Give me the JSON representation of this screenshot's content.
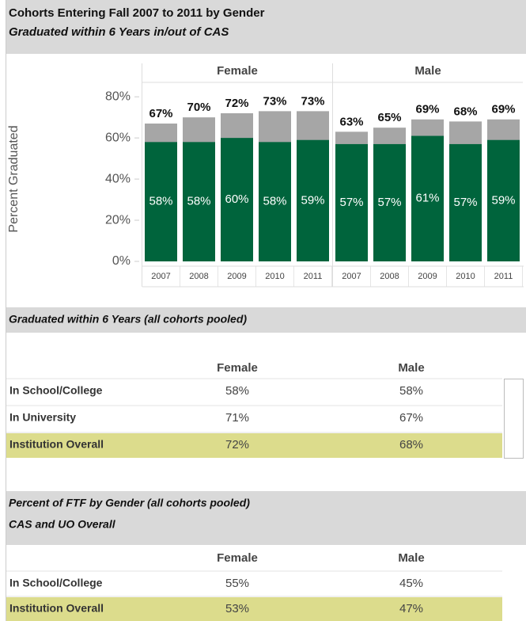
{
  "chart_data": {
    "type": "bar",
    "title": "Cohorts Entering Fall 2007 to 2011 by Gender",
    "subtitle": "Graduated within 6 Years in/out of CAS",
    "ylabel": "Percent Graduated",
    "ylim": [
      0,
      87
    ],
    "yticks": [
      {
        "value": 0,
        "label": "0%"
      },
      {
        "value": 20,
        "label": "20%"
      },
      {
        "value": 40,
        "label": "40%"
      },
      {
        "value": 60,
        "label": "60%"
      },
      {
        "value": 80,
        "label": "80%"
      }
    ],
    "panels": [
      {
        "name": "Female",
        "categories": [
          "2007",
          "2008",
          "2009",
          "2010",
          "2011"
        ],
        "series": [
          {
            "color": "#a6a6a6",
            "values": [
              67,
              70,
              72,
              73,
              73
            ],
            "value_labels": [
              "67%",
              "70%",
              "72%",
              "73%",
              "73%"
            ]
          },
          {
            "color": "#00643c",
            "values": [
              58,
              58,
              60,
              58,
              59
            ],
            "value_labels": [
              "58%",
              "58%",
              "60%",
              "58%",
              "59%"
            ]
          }
        ]
      },
      {
        "name": "Male",
        "categories": [
          "2007",
          "2008",
          "2009",
          "2010",
          "2011"
        ],
        "series": [
          {
            "color": "#a6a6a6",
            "values": [
              63,
              65,
              69,
              68,
              69
            ],
            "value_labels": [
              "63%",
              "65%",
              "69%",
              "68%",
              "69%"
            ]
          },
          {
            "color": "#00643c",
            "values": [
              57,
              57,
              61,
              57,
              59
            ],
            "value_labels": [
              "57%",
              "57%",
              "61%",
              "57%",
              "59%"
            ]
          }
        ]
      }
    ]
  },
  "tables": [
    {
      "title": [
        "Graduated within 6 Years  (all cohorts pooled)"
      ],
      "columns": [
        "Female",
        "Male"
      ],
      "rows": [
        {
          "label": "In School/College",
          "values": [
            "58%",
            "58%"
          ]
        },
        {
          "label": "In University",
          "values": [
            "71%",
            "67%"
          ]
        },
        {
          "label": "Institution Overall",
          "values": [
            "72%",
            "68%"
          ],
          "color": "#dcdc8c"
        }
      ]
    },
    {
      "title": [
        "Percent of FTF by Gender (all cohorts pooled)",
        "CAS and UO Overall"
      ],
      "columns": [
        "Female",
        "Male"
      ],
      "rows": [
        {
          "label": "In School/College",
          "values": [
            "55%",
            "45%"
          ]
        },
        {
          "label": "Institution Overall",
          "values": [
            "53%",
            "47%"
          ],
          "color": "#dcdc8c"
        }
      ]
    }
  ]
}
